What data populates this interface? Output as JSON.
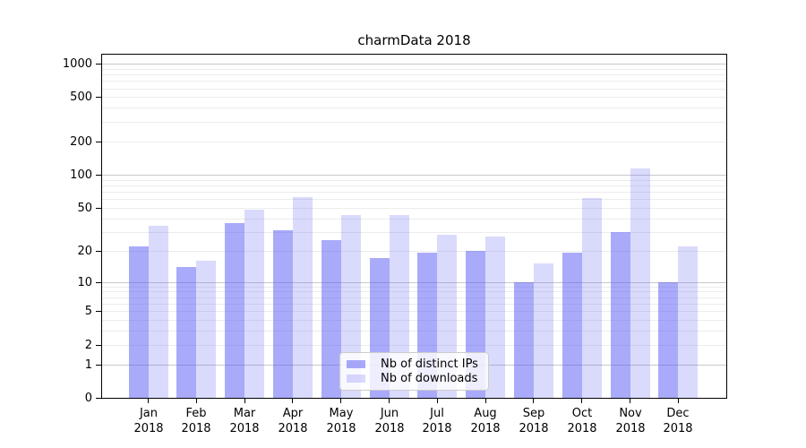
{
  "chart_data": {
    "type": "bar",
    "title": "charmData 2018",
    "categories": [
      "Jan 2018",
      "Feb 2018",
      "Mar 2018",
      "Apr 2018",
      "May 2018",
      "Jun 2018",
      "Jul 2018",
      "Aug 2018",
      "Sep 2018",
      "Oct 2018",
      "Nov 2018",
      "Dec 2018"
    ],
    "series": [
      {
        "name": "Nb of distinct IPs",
        "color": "rgba(85,85,245,0.5)",
        "values": [
          22,
          14,
          36,
          31,
          25,
          17,
          19,
          20,
          10,
          19,
          30,
          10
        ]
      },
      {
        "name": "Nb of downloads",
        "color": "rgba(85,85,245,0.22)",
        "values": [
          34,
          16,
          48,
          62,
          43,
          43,
          28,
          27,
          15,
          61,
          113,
          22
        ]
      }
    ],
    "xlabel": "",
    "ylabel": "",
    "yscale": "log1p",
    "ylim": [
      0,
      1250
    ],
    "yticks": [
      0,
      1,
      2,
      5,
      10,
      20,
      50,
      100,
      200,
      500,
      1000
    ],
    "major_gridlines": [
      1,
      10,
      100,
      1000
    ],
    "minor_gridlines": [
      2,
      3,
      4,
      5,
      6,
      7,
      8,
      9,
      20,
      30,
      40,
      50,
      60,
      70,
      80,
      90,
      200,
      300,
      400,
      500,
      600,
      700,
      800,
      900
    ],
    "grid": true,
    "legend": {
      "position": "lower center",
      "entries": [
        "Nb of distinct IPs",
        "Nb of downloads"
      ]
    },
    "colors": {
      "major_gridline": "#c9c9c9",
      "minor_gridline": "#ececec",
      "axis": "#000000",
      "legend_border": "#cccccc"
    }
  }
}
